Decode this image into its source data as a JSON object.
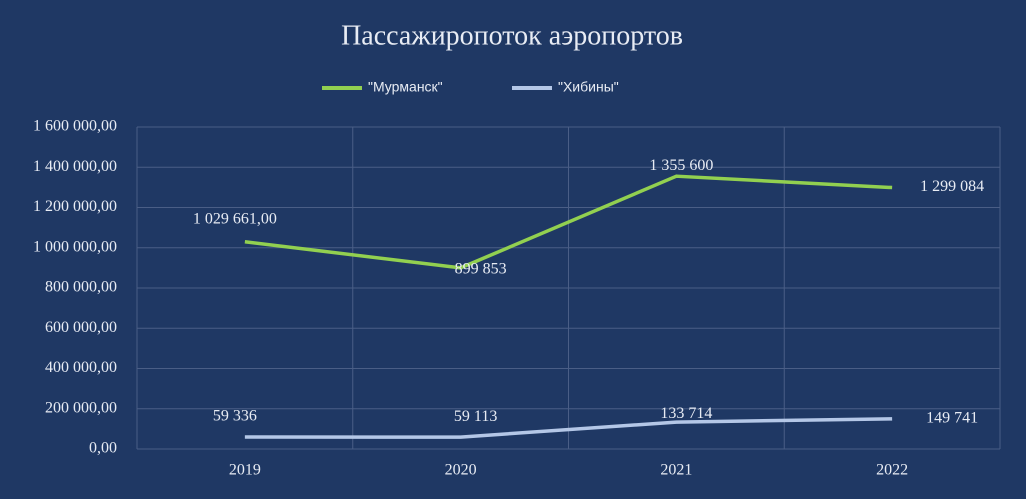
{
  "chart_data": {
    "type": "line",
    "title": "Пассажиропоток аэропортов",
    "categories": [
      "2019",
      "2020",
      "2021",
      "2022"
    ],
    "series": [
      {
        "name": "\"Мурманск\"",
        "color": "#92d050",
        "values": [
          1029661,
          899853,
          1355600,
          1299084
        ],
        "value_labels": [
          "1 029 661,00",
          "899 853",
          "1 355 600",
          "1 299 084"
        ]
      },
      {
        "name": "\"Хибины\"",
        "color": "#b4c7e7",
        "values": [
          59336,
          59113,
          133714,
          149741
        ],
        "value_labels": [
          "59 336",
          "59 113",
          "133 714",
          "149 741"
        ]
      }
    ],
    "ylim": [
      0,
      1600000
    ],
    "yticks": [
      {
        "value": 0,
        "label": "0,00"
      },
      {
        "value": 200000,
        "label": "200 000,00"
      },
      {
        "value": 400000,
        "label": "400 000,00"
      },
      {
        "value": 600000,
        "label": "600 000,00"
      },
      {
        "value": 800000,
        "label": "800 000,00"
      },
      {
        "value": 1000000,
        "label": "1 000 000,00"
      },
      {
        "value": 1200000,
        "label": "1 200 000,00"
      },
      {
        "value": 1400000,
        "label": "1 400 000,00"
      },
      {
        "value": 1600000,
        "label": "1 600 000,00"
      }
    ],
    "grid": true,
    "legend": "top"
  }
}
